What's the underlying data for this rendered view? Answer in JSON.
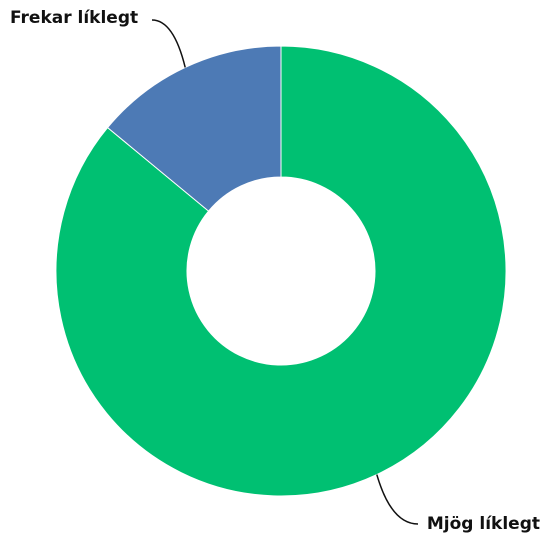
{
  "chart_data": {
    "type": "pie",
    "categories": [
      "Mjög líklegt",
      "Frekar líklegt"
    ],
    "values": [
      86,
      14
    ],
    "colors": [
      "#00c072",
      "#4d7ab5"
    ]
  }
}
